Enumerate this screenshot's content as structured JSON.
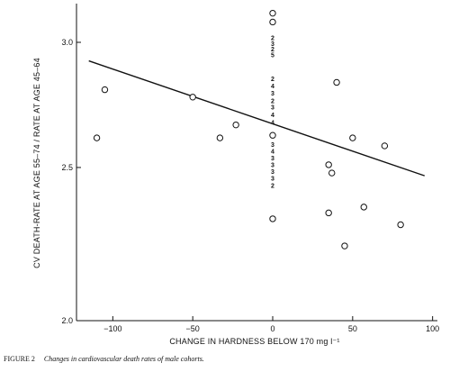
{
  "chart_data": {
    "type": "scatter",
    "xlabel": "CHANGE IN HARDNESS BELOW 170 mg l⁻¹",
    "ylabel": "CV DEATH-RATE AT AGE 55–74 / RATE AT AGE 45–64",
    "y_scale": "log",
    "xlim": [
      -120,
      100
    ],
    "ylim": [
      2.0,
      3.15
    ],
    "x_ticks": [
      -100,
      -50,
      0,
      50,
      100
    ],
    "x_tick_labels": [
      "−100",
      "−50",
      "0",
      "50",
      "100"
    ],
    "y_ticks": [
      2.0,
      2.5,
      3.0
    ],
    "y_tick_labels": [
      "2.0",
      "2.5",
      "3.0"
    ],
    "grid": false,
    "points": [
      {
        "x": -110,
        "y": 2.61
      },
      {
        "x": -105,
        "y": 2.8
      },
      {
        "x": -50,
        "y": 2.77
      },
      {
        "x": -33,
        "y": 2.61
      },
      {
        "x": -23,
        "y": 2.66
      },
      {
        "x": 0,
        "y": 3.13
      },
      {
        "x": 0,
        "y": 3.09
      },
      {
        "x": 0,
        "y": 2.32
      },
      {
        "x": 0,
        "y": 2.62
      },
      {
        "x": 35,
        "y": 2.51
      },
      {
        "x": 37,
        "y": 2.48
      },
      {
        "x": 40,
        "y": 2.83
      },
      {
        "x": 35,
        "y": 2.34
      },
      {
        "x": 50,
        "y": 2.61
      },
      {
        "x": 57,
        "y": 2.36
      },
      {
        "x": 45,
        "y": 2.23
      },
      {
        "x": 70,
        "y": 2.58
      },
      {
        "x": 80,
        "y": 2.3
      }
    ],
    "stacked_counts": {
      "x": 0,
      "entries": [
        {
          "label": "2",
          "y": 3.02
        },
        {
          "label": "3",
          "y": 2.995
        },
        {
          "label": "2",
          "y": 2.97
        },
        {
          "label": "5",
          "y": 2.945
        },
        {
          "label": "2",
          "y": 2.845
        },
        {
          "label": "4",
          "y": 2.815
        },
        {
          "label": "3",
          "y": 2.785
        },
        {
          "label": "2",
          "y": 2.755
        },
        {
          "label": "3",
          "y": 2.73
        },
        {
          "label": "4",
          "y": 2.7
        },
        {
          "label": "4",
          "y": 2.67
        },
        {
          "label": "3",
          "y": 2.585
        },
        {
          "label": "4",
          "y": 2.56
        },
        {
          "label": "3",
          "y": 2.535
        },
        {
          "label": "3",
          "y": 2.51
        },
        {
          "label": "3",
          "y": 2.485
        },
        {
          "label": "3",
          "y": 2.46
        },
        {
          "label": "2",
          "y": 2.435
        }
      ]
    },
    "regression_line": {
      "x": [
        -115,
        95
      ],
      "y": [
        2.92,
        2.47
      ]
    }
  },
  "caption": {
    "figure": "FIGURE 2",
    "text": "Changes in cardiovascular death rates of male cohorts."
  }
}
